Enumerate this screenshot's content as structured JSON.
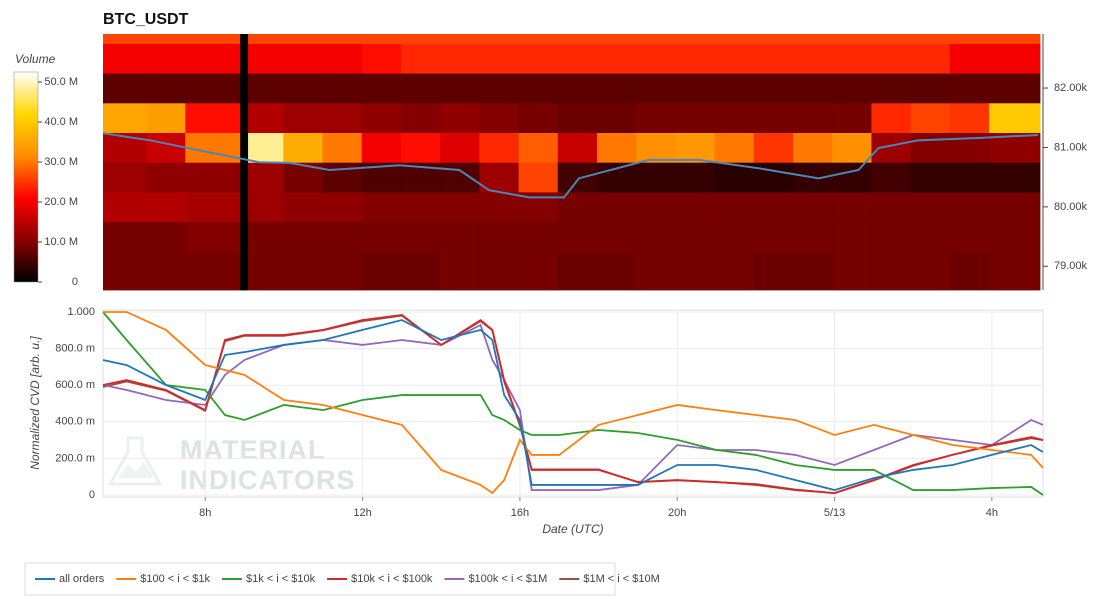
{
  "chart_data": [
    {
      "type": "heatmap",
      "title": "BTC_USDT",
      "x_bins": [
        5.4,
        6.5,
        7.5,
        8.9,
        9.1,
        10,
        11,
        12,
        13,
        14,
        15,
        16,
        17,
        18,
        19,
        20,
        21,
        22,
        23,
        24,
        25,
        26,
        27,
        28,
        29.3
      ],
      "y_bins": [
        78600,
        79250,
        79750,
        80250,
        80750,
        81250,
        81750,
        82250,
        82750,
        82910
      ],
      "z": [
        [
          9000000.0,
          9000000.0,
          9000000.0,
          0,
          9000000.0,
          9000000.0,
          9000000.0,
          8000000.0,
          8000000.0,
          9000000.0,
          9000000.0,
          9000000.0,
          8000000.0,
          8000000.0,
          9000000.0,
          9000000.0,
          9000000.0,
          8000000.0,
          8000000.0,
          9000000.0,
          9000000.0,
          9000000.0,
          8000000.0,
          9000000.0
        ],
        [
          9000000.0,
          9000000.0,
          10000000.0,
          0,
          9000000.0,
          9000000.0,
          9000000.0,
          9000000.0,
          9000000.0,
          9000000.0,
          9000000.0,
          9000000.0,
          9000000.0,
          9000000.0,
          9000000.0,
          9000000.0,
          9000000.0,
          9000000.0,
          9000000.0,
          9000000.0,
          9000000.0,
          9000000.0,
          9000000.0,
          9000000.0
        ],
        [
          14000000.0,
          14000000.0,
          13000000.0,
          0,
          12000000.0,
          11000000.0,
          11000000.0,
          10000000.0,
          10000000.0,
          10000000.0,
          10000000.0,
          10000000.0,
          9000000.0,
          9000000.0,
          9000000.0,
          9000000.0,
          9000000.0,
          9000000.0,
          9000000.0,
          9000000.0,
          9000000.0,
          9000000.0,
          9000000.0,
          9000000.0
        ],
        [
          12000000.0,
          11000000.0,
          11000000.0,
          0,
          12000000.0,
          9000000.0,
          7000000.0,
          6000000.0,
          6000000.0,
          6000000.0,
          12000000.0,
          26000000.0,
          5000000.0,
          4000000.0,
          4000000.0,
          4000000.0,
          3000000.0,
          3000000.0,
          4000000.0,
          4000000.0,
          5000000.0,
          4000000.0,
          4000000.0,
          4000000.0
        ],
        [
          14000000.0,
          16000000.0,
          30000000.0,
          0,
          48000000.0,
          36000000.0,
          30000000.0,
          20000000.0,
          22000000.0,
          18000000.0,
          24000000.0,
          28000000.0,
          16000000.0,
          30000000.0,
          32000000.0,
          33000000.0,
          30000000.0,
          25000000.0,
          30000000.0,
          32000000.0,
          12000000.0,
          10000000.0,
          10000000.0,
          11000000.0
        ],
        [
          35000000.0,
          34000000.0,
          22000000.0,
          0,
          14000000.0,
          12000000.0,
          12000000.0,
          11000000.0,
          10000000.0,
          11000000.0,
          10000000.0,
          9000000.0,
          8000000.0,
          8000000.0,
          9000000.0,
          9000000.0,
          9000000.0,
          9000000.0,
          9000000.0,
          9000000.0,
          24000000.0,
          26000000.0,
          25000000.0,
          40000000.0
        ],
        [
          7000000.0,
          7000000.0,
          7000000.0,
          0,
          7000000.0,
          7000000.0,
          7000000.0,
          7000000.0,
          7000000.0,
          7000000.0,
          7000000.0,
          7000000.0,
          7000000.0,
          7000000.0,
          7000000.0,
          7000000.0,
          7000000.0,
          7000000.0,
          7000000.0,
          7000000.0,
          7000000.0,
          7000000.0,
          7000000.0,
          7000000.0
        ],
        [
          20000000.0,
          20000000.0,
          20000000.0,
          0,
          20000000.0,
          20000000.0,
          20000000.0,
          22000000.0,
          24000000.0,
          24000000.0,
          24000000.0,
          24000000.0,
          24000000.0,
          24000000.0,
          24000000.0,
          24000000.0,
          24000000.0,
          24000000.0,
          24000000.0,
          24000000.0,
          24000000.0,
          24000000.0,
          20000000.0,
          20000000.0
        ],
        [
          26000000.0,
          26000000.0,
          26000000.0,
          0,
          26000000.0,
          26000000.0,
          26000000.0,
          26000000.0,
          26000000.0,
          26000000.0,
          26000000.0,
          26000000.0,
          26000000.0,
          26000000.0,
          26000000.0,
          26000000.0,
          26000000.0,
          26000000.0,
          26000000.0,
          26000000.0,
          26000000.0,
          26000000.0,
          26000000.0,
          26000000.0
        ]
      ],
      "xlim": [
        5.4,
        29.3
      ],
      "ylim": [
        78600,
        82910
      ],
      "yticks": [
        {
          "value": 79000,
          "label": "79.00k"
        },
        {
          "value": 80000,
          "label": "80.00k"
        },
        {
          "value": 81000,
          "label": "81.00k"
        },
        {
          "value": 82000,
          "label": "82.00k"
        }
      ],
      "colorbar": {
        "title": "Volume",
        "lim": [
          0,
          52500000.0
        ],
        "ticks": [
          0,
          {
            "value": 10000000.0,
            "label": "10.0 M"
          },
          {
            "value": 20000000.0,
            "label": "20.0 M"
          },
          {
            "value": 30000000.0,
            "label": "30.0 M"
          },
          {
            "value": 40000000.0,
            "label": "40.0 M"
          },
          {
            "value": 50000000.0,
            "label": "50.0 M"
          }
        ],
        "colormap": [
          "#000000",
          "#8b0000",
          "#ff0000",
          "#ff8c00",
          "#ffd700",
          "#ffffff"
        ]
      },
      "line": {
        "color": "#4a86b8",
        "x": [
          5.4,
          6.6,
          7.87,
          9.4,
          10.16,
          11.18,
          12.96,
          14.49,
          15.25,
          16.27,
          17.16,
          17.54,
          19.32,
          20.6,
          22.12,
          23.65,
          24.67,
          25.18,
          26.19,
          27.72,
          29.25
        ],
        "values": [
          81240,
          81120,
          80950,
          80750,
          80740,
          80620,
          80700,
          80620,
          80280,
          80160,
          80160,
          80480,
          80790,
          80790,
          80650,
          80480,
          80620,
          80990,
          81120,
          81160,
          81210
        ]
      }
    },
    {
      "type": "line",
      "ylabel": "Normalized CVD [arb. u.]",
      "xlabel": "Date (UTC)",
      "watermark": [
        "MATERIAL",
        "INDICATORS"
      ],
      "x": [
        5.4,
        6,
        7,
        8,
        8.5,
        9,
        10,
        11,
        12,
        13,
        14,
        15,
        15.3,
        15.6,
        16,
        16.3,
        17,
        18,
        19,
        20,
        21,
        22,
        23,
        24,
        25,
        26,
        27,
        28,
        29,
        29.3
      ],
      "xlim": [
        5.4,
        29.3
      ],
      "ylim": [
        0,
        1
      ],
      "xticks": [
        {
          "value": 8,
          "label": "8h"
        },
        {
          "value": 12,
          "label": "12h"
        },
        {
          "value": 16,
          "label": "16h"
        },
        {
          "value": 20,
          "label": "20h"
        },
        {
          "value": 24,
          "label": "5/13"
        },
        {
          "value": 28,
          "label": "4h"
        }
      ],
      "yticks": [
        0,
        {
          "value": 0.2,
          "label": "200.0 m"
        },
        {
          "value": 0.4,
          "label": "400.0 m"
        },
        {
          "value": 0.6,
          "label": "600.0 m"
        },
        {
          "value": 0.8,
          "label": "800.0 m"
        },
        {
          "value": 1,
          "label": "1.000"
        }
      ],
      "grid": true,
      "series": [
        {
          "name": "all orders",
          "color": "#1f77b4",
          "values": [
            0.738,
            0.71,
            0.601,
            0.519,
            0.765,
            0.781,
            0.82,
            0.847,
            0.902,
            0.956,
            0.847,
            0.902,
            0.847,
            0.546,
            0.41,
            0.055,
            0.055,
            0.055,
            0.055,
            0.164,
            0.164,
            0.137,
            0.082,
            0.027,
            0.093,
            0.137,
            0.164,
            0.219,
            0.273,
            0.235
          ]
        },
        {
          "name": "$100 < i < $1k",
          "color": "#ff7f0e",
          "values": [
            1,
            1,
            0.902,
            0.71,
            0.683,
            0.656,
            0.519,
            0.492,
            0.437,
            0.383,
            0.137,
            0.055,
            0.011,
            0.082,
            0.301,
            0.219,
            0.219,
            0.383,
            0.437,
            0.492,
            0.464,
            0.437,
            0.41,
            0.328,
            0.383,
            0.328,
            0.273,
            0.246,
            0.219,
            0.148
          ]
        },
        {
          "name": "$1k < i < $10k",
          "color": "#2ca02c",
          "values": [
            1,
            0.847,
            0.601,
            0.574,
            0.437,
            0.41,
            0.492,
            0.464,
            0.519,
            0.546,
            0.546,
            0.546,
            0.437,
            0.41,
            0.355,
            0.328,
            0.328,
            0.355,
            0.339,
            0.301,
            0.246,
            0.219,
            0.164,
            0.137,
            0.137,
            0.027,
            0.027,
            0.038,
            0.044,
            0
          ]
        },
        {
          "name": "$10k < i < $100k",
          "color": "#d62728",
          "values": [
            0.601,
            0.628,
            0.574,
            0.464,
            0.847,
            0.874,
            0.874,
            0.902,
            0.956,
            0.984,
            0.82,
            0.956,
            0.902,
            0.628,
            0.383,
            0.137,
            0.137,
            0.137,
            0.071,
            0.082,
            0.071,
            0.055,
            0.027,
            0.011,
            0.082,
            0.164,
            0.219,
            0.273,
            0.317,
            0.301
          ]
        },
        {
          "name": "$100k < i < $1M",
          "color": "#9467bd",
          "values": [
            0.601,
            0.574,
            0.519,
            0.492,
            0.656,
            0.738,
            0.82,
            0.847,
            0.82,
            0.847,
            0.82,
            0.929,
            0.738,
            0.628,
            0.464,
            0.027,
            0.027,
            0.027,
            0.055,
            0.273,
            0.246,
            0.246,
            0.219,
            0.164,
            0.246,
            0.328,
            0.301,
            0.273,
            0.41,
            0.383
          ]
        },
        {
          "name": "$1M < i < $10M",
          "color": "#8c564b",
          "values": [
            0.59,
            0.62,
            0.57,
            0.46,
            0.84,
            0.87,
            0.87,
            0.9,
            0.95,
            0.98,
            0.82,
            0.95,
            0.9,
            0.62,
            0.38,
            0.14,
            0.14,
            0.14,
            0.07,
            0.08,
            0.07,
            0.06,
            0.03,
            0.01,
            0.08,
            0.16,
            0.22,
            0.27,
            0.31,
            0.3
          ]
        }
      ]
    }
  ]
}
